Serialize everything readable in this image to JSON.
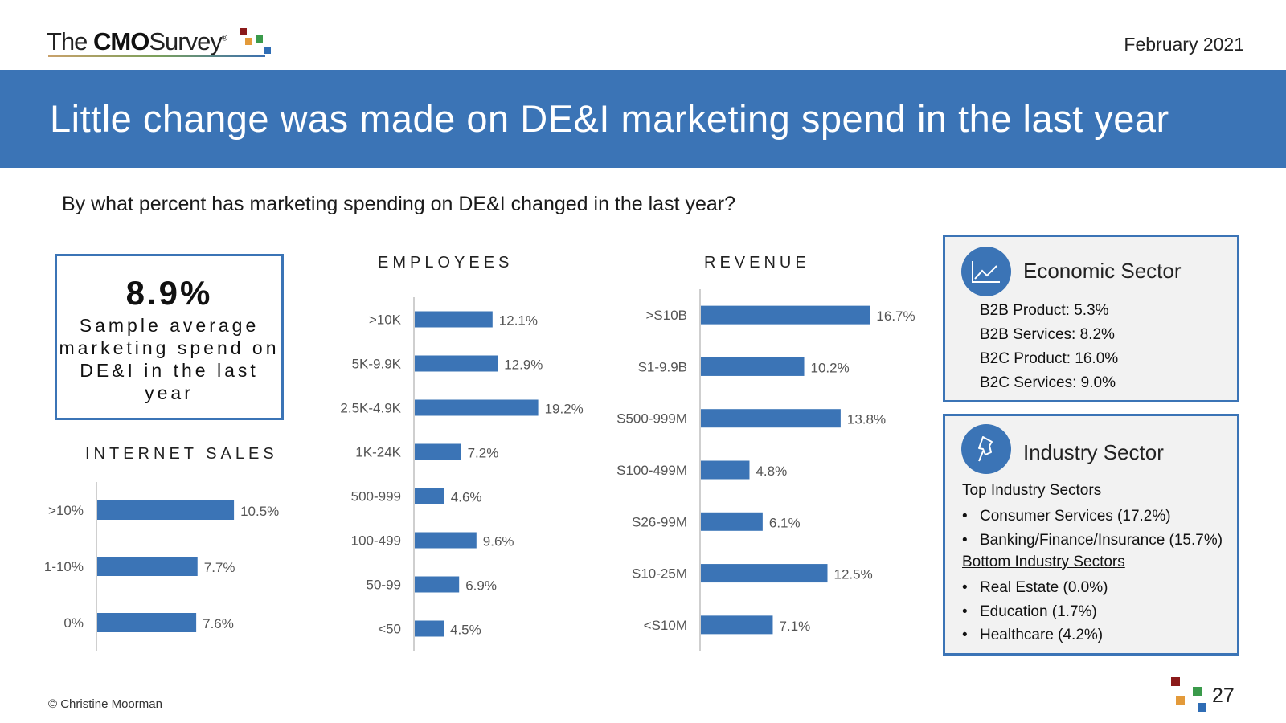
{
  "header": {
    "logo_the": "The",
    "logo_cmo": "CMO",
    "logo_survey": "Survey",
    "logo_reg": "®",
    "date": "February 2021",
    "title": "Little change was made on DE&I marketing spend in the last year"
  },
  "question": "By what percent has marketing spending on DE&I changed in the last year?",
  "average": {
    "value": "8.9%",
    "label": "Sample average marketing spend on DE&I in the last year"
  },
  "colors": {
    "bar": "#3b74b6",
    "banner": "#3b74b6",
    "box_fill": "#f2f2f2"
  },
  "chart_data": [
    {
      "type": "bar",
      "orientation": "horizontal",
      "title": "INTERNET SALES",
      "categories": [
        ">10%",
        "1-10%",
        "0%"
      ],
      "values": [
        10.5,
        7.7,
        7.6
      ],
      "value_labels": [
        "10.5%",
        "7.7%",
        "7.6%"
      ],
      "unit": "%"
    },
    {
      "type": "bar",
      "orientation": "horizontal",
      "title": "EMPLOYEES",
      "categories": [
        ">10K",
        "5K-9.9K",
        "2.5K-4.9K",
        "1K-24K",
        "500-999",
        "100-499",
        "50-99",
        "<50"
      ],
      "values": [
        12.1,
        12.9,
        19.2,
        7.2,
        4.6,
        9.6,
        6.9,
        4.5
      ],
      "value_labels": [
        "12.1%",
        "12.9%",
        "19.2%",
        "7.2%",
        "4.6%",
        "9.6%",
        "6.9%",
        "4.5%"
      ],
      "unit": "%"
    },
    {
      "type": "bar",
      "orientation": "horizontal",
      "title": "REVENUE",
      "categories": [
        ">S10B",
        "S1-9.9B",
        "S500-999M",
        "S100-499M",
        "S26-99M",
        "S10-25M",
        "<S10M"
      ],
      "values": [
        16.7,
        10.2,
        13.8,
        4.8,
        6.1,
        12.5,
        7.1
      ],
      "value_labels": [
        "16.7%",
        "10.2%",
        "13.8%",
        "4.8%",
        "6.1%",
        "12.5%",
        "7.1%"
      ],
      "unit": "%"
    }
  ],
  "economic_sector": {
    "icon": "line-chart-icon",
    "title": "Economic Sector",
    "items": [
      "B2B Product: 5.3%",
      "B2B Services: 8.2%",
      "B2C Product: 16.0%",
      "B2C Services: 9.0%"
    ]
  },
  "industry_sector": {
    "icon": "pushpin-icon",
    "title": "Industry Sector",
    "top_label": "Top Industry Sectors",
    "top_items": [
      "Consumer Services (17.2%)",
      "Banking/Finance/Insurance (15.7%)"
    ],
    "bottom_label": "Bottom Industry Sectors",
    "bottom_items": [
      "Real Estate (0.0%)",
      "Education (1.7%)",
      "Healthcare (4.2%)"
    ]
  },
  "footer": {
    "copyright": "© Christine Moorman",
    "page_number": "27"
  }
}
